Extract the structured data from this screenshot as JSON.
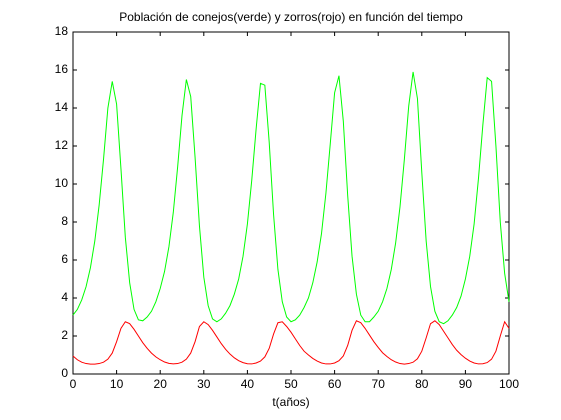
{
  "chart_data": {
    "type": "line",
    "title": "Población de conejos(verde) y zorros(rojo) en función del tiempo",
    "xlabel": "t(años)",
    "x": [
      0,
      1,
      2,
      3,
      4,
      5,
      6,
      7,
      8,
      9,
      10,
      11,
      12,
      13,
      14,
      15,
      16,
      17,
      18,
      19,
      20,
      21,
      22,
      23,
      24,
      25,
      26,
      27,
      28,
      29,
      30,
      31,
      32,
      33,
      34,
      35,
      36,
      37,
      38,
      39,
      40,
      41,
      42,
      43,
      44,
      45,
      46,
      47,
      48,
      49,
      50,
      51,
      52,
      53,
      54,
      55,
      56,
      57,
      58,
      59,
      60,
      61,
      62,
      63,
      64,
      65,
      66,
      67,
      68,
      69,
      70,
      71,
      72,
      73,
      74,
      75,
      76,
      77,
      78,
      79,
      80,
      81,
      82,
      83,
      84,
      85,
      86,
      87,
      88,
      89,
      90,
      91,
      92,
      93,
      94,
      95,
      96,
      97,
      98,
      99,
      100
    ],
    "series": [
      {
        "color": "#00ff00",
        "values": [
          3.1,
          3.4,
          3.9,
          4.6,
          5.6,
          7.0,
          8.9,
          11.3,
          14.0,
          15.4,
          14.2,
          10.8,
          7.2,
          4.8,
          3.4,
          2.85,
          2.8,
          3.0,
          3.3,
          3.8,
          4.5,
          5.4,
          6.7,
          8.5,
          10.9,
          13.6,
          15.5,
          14.6,
          11.4,
          7.8,
          5.1,
          3.6,
          2.9,
          2.75,
          2.9,
          3.2,
          3.6,
          4.2,
          5.0,
          6.2,
          7.9,
          10.2,
          12.9,
          15.3,
          15.2,
          12.2,
          8.4,
          5.5,
          3.8,
          3.0,
          2.75,
          2.85,
          3.1,
          3.5,
          4.0,
          4.8,
          5.9,
          7.4,
          9.5,
          12.1,
          14.8,
          15.7,
          13.3,
          9.4,
          6.2,
          4.2,
          3.1,
          2.75,
          2.75,
          3.0,
          3.3,
          3.8,
          4.5,
          5.5,
          6.9,
          8.8,
          11.3,
          14.1,
          15.9,
          14.5,
          10.6,
          7.0,
          4.6,
          3.3,
          2.75,
          2.65,
          2.8,
          3.1,
          3.5,
          4.1,
          5.0,
          6.2,
          7.9,
          10.3,
          13.1,
          15.6,
          15.4,
          12.0,
          8.0,
          5.3,
          3.8
        ]
      },
      {
        "color": "#ff0000",
        "values": [
          0.95,
          0.75,
          0.62,
          0.55,
          0.52,
          0.52,
          0.55,
          0.62,
          0.78,
          1.1,
          1.7,
          2.4,
          2.75,
          2.65,
          2.35,
          2.0,
          1.65,
          1.35,
          1.1,
          0.9,
          0.75,
          0.63,
          0.56,
          0.53,
          0.55,
          0.62,
          0.78,
          1.1,
          1.7,
          2.5,
          2.75,
          2.6,
          2.3,
          1.95,
          1.6,
          1.3,
          1.05,
          0.85,
          0.7,
          0.6,
          0.54,
          0.53,
          0.58,
          0.68,
          0.9,
          1.35,
          2.1,
          2.7,
          2.75,
          2.5,
          2.2,
          1.85,
          1.5,
          1.2,
          1.0,
          0.82,
          0.68,
          0.58,
          0.53,
          0.53,
          0.58,
          0.7,
          0.95,
          1.5,
          2.3,
          2.8,
          2.7,
          2.4,
          2.05,
          1.7,
          1.4,
          1.12,
          0.92,
          0.75,
          0.63,
          0.55,
          0.52,
          0.55,
          0.62,
          0.8,
          1.2,
          1.9,
          2.65,
          2.8,
          2.6,
          2.25,
          1.9,
          1.55,
          1.25,
          1.02,
          0.83,
          0.68,
          0.58,
          0.53,
          0.54,
          0.6,
          0.78,
          1.2,
          2.0,
          2.75,
          2.4
        ]
      }
    ],
    "xlim": [
      0,
      100
    ],
    "xticks": [
      0,
      10,
      20,
      30,
      40,
      50,
      60,
      70,
      80,
      90,
      100
    ],
    "ylim": [
      0,
      18
    ],
    "yticks": [
      0,
      2,
      4,
      6,
      8,
      10,
      12,
      14,
      16,
      18
    ],
    "grid": false
  }
}
